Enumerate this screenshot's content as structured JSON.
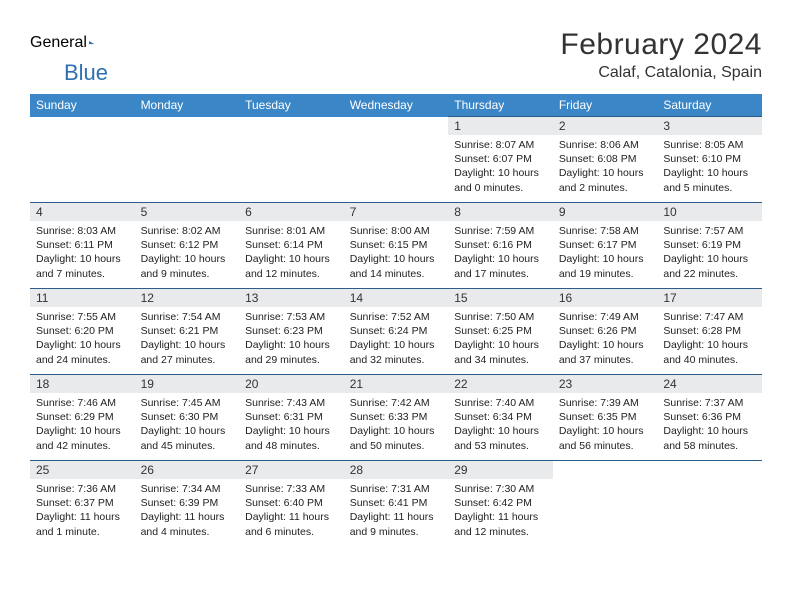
{
  "logo": {
    "text_general": "General",
    "text_blue": "Blue",
    "icon_color": "#2f6fb3"
  },
  "title": "February 2024",
  "location": "Calaf, Catalonia, Spain",
  "colors": {
    "header_bg": "#3b86c6",
    "header_fg": "#ffffff",
    "daynum_bg": "#e9eaeb",
    "cell_border": "#2c5d8a",
    "text": "#222222"
  },
  "weekdays": [
    "Sunday",
    "Monday",
    "Tuesday",
    "Wednesday",
    "Thursday",
    "Friday",
    "Saturday"
  ],
  "first_weekday_index": 4,
  "days": [
    {
      "n": "1",
      "sunrise": "8:07 AM",
      "sunset": "6:07 PM",
      "daylight": "10 hours and 0 minutes."
    },
    {
      "n": "2",
      "sunrise": "8:06 AM",
      "sunset": "6:08 PM",
      "daylight": "10 hours and 2 minutes."
    },
    {
      "n": "3",
      "sunrise": "8:05 AM",
      "sunset": "6:10 PM",
      "daylight": "10 hours and 5 minutes."
    },
    {
      "n": "4",
      "sunrise": "8:03 AM",
      "sunset": "6:11 PM",
      "daylight": "10 hours and 7 minutes."
    },
    {
      "n": "5",
      "sunrise": "8:02 AM",
      "sunset": "6:12 PM",
      "daylight": "10 hours and 9 minutes."
    },
    {
      "n": "6",
      "sunrise": "8:01 AM",
      "sunset": "6:14 PM",
      "daylight": "10 hours and 12 minutes."
    },
    {
      "n": "7",
      "sunrise": "8:00 AM",
      "sunset": "6:15 PM",
      "daylight": "10 hours and 14 minutes."
    },
    {
      "n": "8",
      "sunrise": "7:59 AM",
      "sunset": "6:16 PM",
      "daylight": "10 hours and 17 minutes."
    },
    {
      "n": "9",
      "sunrise": "7:58 AM",
      "sunset": "6:17 PM",
      "daylight": "10 hours and 19 minutes."
    },
    {
      "n": "10",
      "sunrise": "7:57 AM",
      "sunset": "6:19 PM",
      "daylight": "10 hours and 22 minutes."
    },
    {
      "n": "11",
      "sunrise": "7:55 AM",
      "sunset": "6:20 PM",
      "daylight": "10 hours and 24 minutes."
    },
    {
      "n": "12",
      "sunrise": "7:54 AM",
      "sunset": "6:21 PM",
      "daylight": "10 hours and 27 minutes."
    },
    {
      "n": "13",
      "sunrise": "7:53 AM",
      "sunset": "6:23 PM",
      "daylight": "10 hours and 29 minutes."
    },
    {
      "n": "14",
      "sunrise": "7:52 AM",
      "sunset": "6:24 PM",
      "daylight": "10 hours and 32 minutes."
    },
    {
      "n": "15",
      "sunrise": "7:50 AM",
      "sunset": "6:25 PM",
      "daylight": "10 hours and 34 minutes."
    },
    {
      "n": "16",
      "sunrise": "7:49 AM",
      "sunset": "6:26 PM",
      "daylight": "10 hours and 37 minutes."
    },
    {
      "n": "17",
      "sunrise": "7:47 AM",
      "sunset": "6:28 PM",
      "daylight": "10 hours and 40 minutes."
    },
    {
      "n": "18",
      "sunrise": "7:46 AM",
      "sunset": "6:29 PM",
      "daylight": "10 hours and 42 minutes."
    },
    {
      "n": "19",
      "sunrise": "7:45 AM",
      "sunset": "6:30 PM",
      "daylight": "10 hours and 45 minutes."
    },
    {
      "n": "20",
      "sunrise": "7:43 AM",
      "sunset": "6:31 PM",
      "daylight": "10 hours and 48 minutes."
    },
    {
      "n": "21",
      "sunrise": "7:42 AM",
      "sunset": "6:33 PM",
      "daylight": "10 hours and 50 minutes."
    },
    {
      "n": "22",
      "sunrise": "7:40 AM",
      "sunset": "6:34 PM",
      "daylight": "10 hours and 53 minutes."
    },
    {
      "n": "23",
      "sunrise": "7:39 AM",
      "sunset": "6:35 PM",
      "daylight": "10 hours and 56 minutes."
    },
    {
      "n": "24",
      "sunrise": "7:37 AM",
      "sunset": "6:36 PM",
      "daylight": "10 hours and 58 minutes."
    },
    {
      "n": "25",
      "sunrise": "7:36 AM",
      "sunset": "6:37 PM",
      "daylight": "11 hours and 1 minute."
    },
    {
      "n": "26",
      "sunrise": "7:34 AM",
      "sunset": "6:39 PM",
      "daylight": "11 hours and 4 minutes."
    },
    {
      "n": "27",
      "sunrise": "7:33 AM",
      "sunset": "6:40 PM",
      "daylight": "11 hours and 6 minutes."
    },
    {
      "n": "28",
      "sunrise": "7:31 AM",
      "sunset": "6:41 PM",
      "daylight": "11 hours and 9 minutes."
    },
    {
      "n": "29",
      "sunrise": "7:30 AM",
      "sunset": "6:42 PM",
      "daylight": "11 hours and 12 minutes."
    }
  ]
}
